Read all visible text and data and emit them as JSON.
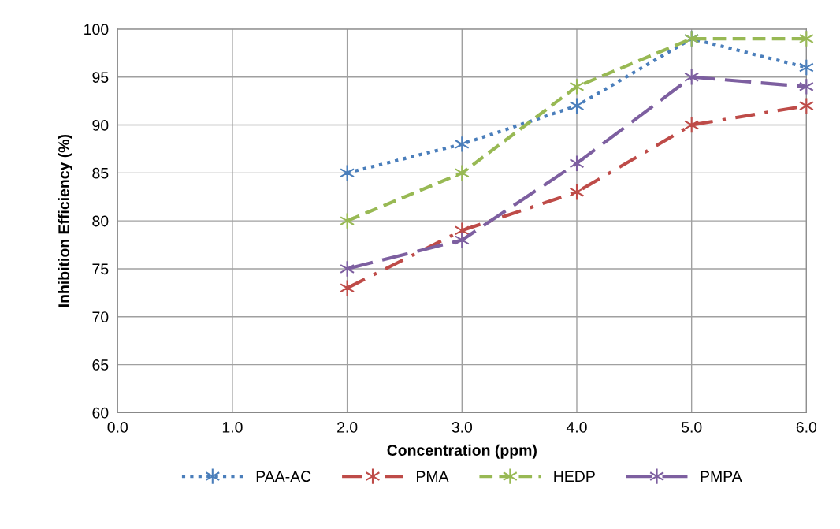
{
  "chart_data": {
    "type": "line",
    "xlabel": "Concentration (ppm)",
    "ylabel": "Inhibition Efficiency (%)",
    "x": [
      2,
      3,
      4,
      5,
      6
    ],
    "series": [
      {
        "name": "PAA-AC",
        "color": "#4a7ebb",
        "line_style": "dotted",
        "values": [
          85,
          88,
          92,
          99,
          96
        ]
      },
      {
        "name": "PMA",
        "color": "#be4b48",
        "line_style": "dashdot",
        "values": [
          73,
          79,
          83,
          90,
          92
        ]
      },
      {
        "name": "HEDP",
        "color": "#98b954",
        "line_style": "dashed",
        "values": [
          80,
          85,
          94,
          99,
          99
        ]
      },
      {
        "name": "PMPA",
        "color": "#7d5fa0",
        "line_style": "longdash",
        "values": [
          75,
          78,
          86,
          95,
          94
        ]
      }
    ],
    "xlim": [
      0,
      6
    ],
    "xticks": [
      {
        "value": 0,
        "label": "0.0"
      },
      {
        "value": 1,
        "label": "1.0"
      },
      {
        "value": 2,
        "label": "2.0"
      },
      {
        "value": 3,
        "label": "3.0"
      },
      {
        "value": 4,
        "label": "4.0"
      },
      {
        "value": 5,
        "label": "5.0"
      },
      {
        "value": 6,
        "label": "6.0"
      }
    ],
    "ylim": [
      60,
      100
    ],
    "yticks": [
      60,
      65,
      70,
      75,
      80,
      85,
      90,
      95,
      100
    ],
    "grid": true,
    "legend": "bottom",
    "marker": "cross"
  }
}
